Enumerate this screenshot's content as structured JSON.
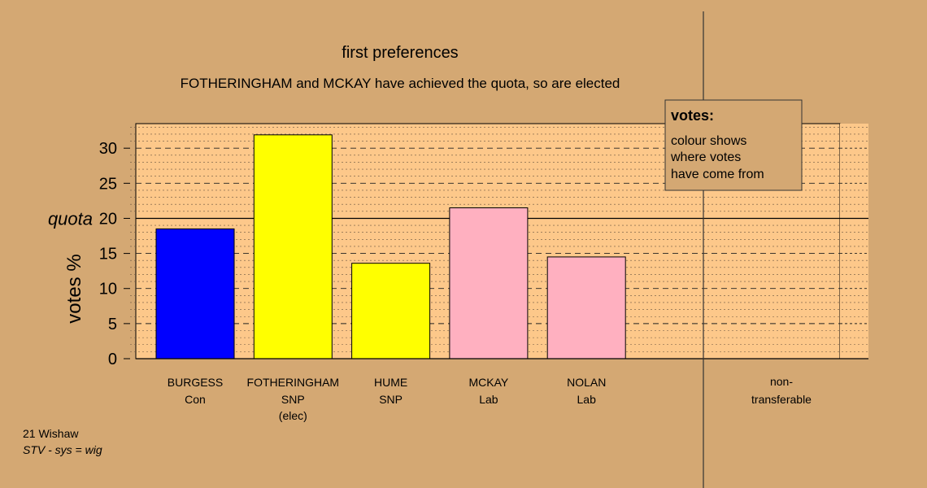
{
  "colors": {
    "background": "#D4A873",
    "plot_area": "#FDC88A",
    "con": "#0000FF",
    "snp": "#FFFF00",
    "lab": "#FFB0C0"
  },
  "chart_data": {
    "type": "bar",
    "title": "first preferences",
    "subtitle": "FOTHERINGHAM and MCKAY have achieved the quota, so are elected",
    "ylabel": "votes %",
    "ylim": [
      0,
      33.5
    ],
    "yticks": [
      "0",
      "5",
      "10",
      "15",
      "20",
      "25",
      "30"
    ],
    "quota": {
      "value": 20,
      "label": "quota"
    },
    "categories": [
      {
        "name": "BURGESS",
        "party": "Con",
        "note": "",
        "value": 18.5,
        "color": "#0000FF"
      },
      {
        "name": "FOTHERINGHAM",
        "party": "SNP",
        "note": "(elec)",
        "value": 31.9,
        "color": "#FFFF00"
      },
      {
        "name": "HUME",
        "party": "SNP",
        "note": "",
        "value": 13.6,
        "color": "#FFFF00"
      },
      {
        "name": "MCKAY",
        "party": "Lab",
        "note": "",
        "value": 21.5,
        "color": "#FFB0C0"
      },
      {
        "name": "NOLAN",
        "party": "Lab",
        "note": "",
        "value": 14.5,
        "color": "#FFB0C0"
      }
    ],
    "nontransferable": {
      "line1": "non-",
      "line2": "transferable",
      "value": 0
    },
    "legend": {
      "title": "votes:",
      "lines": [
        "colour shows",
        "where votes",
        "have come from"
      ],
      "position": "top-right"
    },
    "grid": true
  },
  "footer": {
    "ward": "21 Wishaw",
    "system": "STV - sys = wig"
  }
}
